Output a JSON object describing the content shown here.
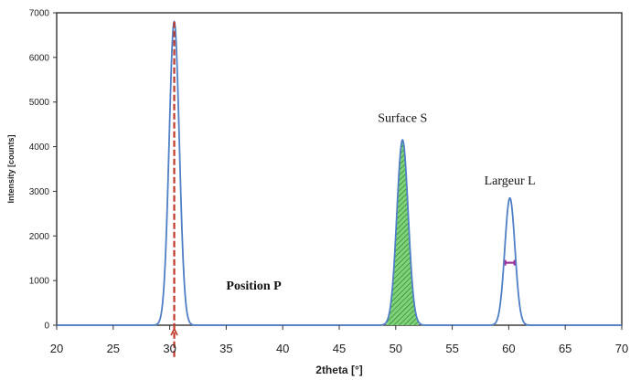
{
  "chart_data": {
    "type": "line",
    "xlabel": "2theta [°]",
    "ylabel": "Intensity [counts]",
    "xlim": [
      20,
      70
    ],
    "ylim": [
      0,
      7000
    ],
    "x_ticks": [
      "20",
      "25",
      "30",
      "35",
      "40",
      "45",
      "50",
      "55",
      "60",
      "65",
      "70"
    ],
    "y_ticks": [
      "0",
      "1000",
      "2000",
      "3000",
      "4000",
      "5000",
      "6000",
      "7000"
    ],
    "grid": false,
    "series": [
      {
        "peaks": [
          {
            "center": 30.4,
            "height": 6800,
            "width": 0.45
          },
          {
            "center": 50.6,
            "height": 4150,
            "width": 0.5
          },
          {
            "center": 60.1,
            "height": 2850,
            "width": 0.45
          }
        ]
      }
    ],
    "annotations": [
      {
        "text": "Position P",
        "x": 35,
        "y": 800
      },
      {
        "text": "Surface S",
        "x": 50.6,
        "y": 4550
      },
      {
        "text": "Largeur L",
        "x": 60.1,
        "y": 3150
      }
    ],
    "markers": {
      "position_line_x": 30.4,
      "surface_fill_range": [
        49.2,
        52.0
      ],
      "width_marker": {
        "x_from": 59.7,
        "x_to": 60.5,
        "y": 1400
      }
    },
    "colors": {
      "curve": "#4f7fc6",
      "position_line": "#c0392b",
      "surface_fill": "#5cbf55",
      "width_marker": "#a0309b"
    }
  }
}
